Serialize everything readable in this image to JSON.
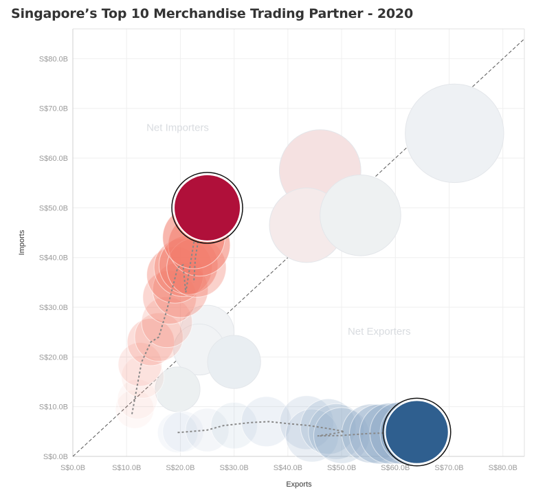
{
  "chart_data": {
    "type": "scatter",
    "title": "Singapore’s Top 10 Merchandise Trading Partner - 2020",
    "xlabel": "Exports",
    "ylabel": "Imports",
    "xlim": [
      0,
      84
    ],
    "ylim": [
      0,
      86
    ],
    "x_ticks": [
      0,
      10,
      20,
      30,
      40,
      50,
      60,
      70,
      80
    ],
    "y_ticks": [
      0,
      10,
      20,
      30,
      40,
      50,
      60,
      70,
      80
    ],
    "x_tick_labels": [
      "S$0.0B",
      "S$10.0B",
      "S$20.0B",
      "S$30.0B",
      "S$40.0B",
      "S$50.0B",
      "S$60.0B",
      "S$70.0B",
      "S$80.0B"
    ],
    "y_tick_labels": [
      "S$0.0B",
      "S$10.0B",
      "S$20.0B",
      "S$30.0B",
      "S$40.0B",
      "S$50.0B",
      "S$60.0B",
      "S$70.0B",
      "S$80.0B"
    ],
    "grid": true,
    "reference_line": "diagonal y = x (dashed)",
    "annotations": [
      {
        "text": "Net Importers",
        "x": 19.5,
        "y": 65.5
      },
      {
        "text": "Net Exporters",
        "x": 57,
        "y": 24.5
      }
    ],
    "series": [
      {
        "color_scale": "red",
        "trail": [
          [
            11.0,
            8.5
          ],
          [
            12.8,
            19.0
          ],
          [
            14.5,
            23.0
          ],
          [
            16.0,
            24.0
          ],
          [
            17.5,
            29.5
          ],
          [
            19.5,
            38.0
          ],
          [
            20.5,
            38.5
          ],
          [
            21.0,
            33.0
          ],
          [
            22.5,
            43.0
          ],
          [
            23.5,
            44.5
          ],
          [
            22.8,
            40.0
          ],
          [
            22.5,
            35.0
          ]
        ],
        "points": [
          {
            "x": 11.5,
            "y": 9.5,
            "opacity": 0.05
          },
          {
            "x": 12.0,
            "y": 11.5,
            "opacity": 0.05
          },
          {
            "x": 13.0,
            "y": 16.0,
            "opacity": 0.08
          },
          {
            "x": 12.5,
            "y": 18.5,
            "opacity": 0.15
          },
          {
            "x": 14.5,
            "y": 23.0,
            "opacity": 0.25
          },
          {
            "x": 16.0,
            "y": 24.0,
            "opacity": 0.2
          },
          {
            "x": 17.5,
            "y": 27.0,
            "opacity": 0.2
          },
          {
            "x": 18.0,
            "y": 32.0,
            "opacity": 0.3
          },
          {
            "x": 20.0,
            "y": 33.5,
            "opacity": 0.35
          },
          {
            "x": 19.0,
            "y": 36.5,
            "opacity": 0.4
          },
          {
            "x": 20.5,
            "y": 38.0,
            "opacity": 0.4
          },
          {
            "x": 21.5,
            "y": 38.5,
            "opacity": 0.45
          },
          {
            "x": 23.0,
            "y": 38.0,
            "opacity": 0.35
          },
          {
            "x": 23.5,
            "y": 42.5,
            "opacity": 0.55
          },
          {
            "x": 22.5,
            "y": 44.0,
            "opacity": 0.55
          },
          {
            "x": 25.0,
            "y": 50.0,
            "opacity": 1.0,
            "highlight": true
          }
        ]
      },
      {
        "color_scale": "blue",
        "trail": [
          [
            19.5,
            4.8
          ],
          [
            22.0,
            5.0
          ],
          [
            25.0,
            5.3
          ],
          [
            28.0,
            6.2
          ],
          [
            33.0,
            6.8
          ],
          [
            36.5,
            7.0
          ],
          [
            40.0,
            6.6
          ],
          [
            44.0,
            6.2
          ],
          [
            48.0,
            5.5
          ],
          [
            50.5,
            5.0
          ],
          [
            48.0,
            4.5
          ],
          [
            45.5,
            4.1
          ],
          [
            50.0,
            4.2
          ],
          [
            55.0,
            4.6
          ],
          [
            58.0,
            4.7
          ],
          [
            62.0,
            4.7
          ]
        ],
        "points": [
          {
            "x": 19.5,
            "y": 4.8,
            "opacity": 0.08
          },
          {
            "x": 20.5,
            "y": 5.0,
            "opacity": 0.08
          },
          {
            "x": 25.0,
            "y": 5.3,
            "opacity": 0.1
          },
          {
            "x": 30.0,
            "y": 6.2,
            "opacity": 0.12
          },
          {
            "x": 36.0,
            "y": 7.0,
            "opacity": 0.15
          },
          {
            "x": 43.5,
            "y": 6.8,
            "opacity": 0.2
          },
          {
            "x": 44.5,
            "y": 4.2,
            "opacity": 0.2
          },
          {
            "x": 47.5,
            "y": 6.0,
            "opacity": 0.25
          },
          {
            "x": 49.0,
            "y": 5.0,
            "opacity": 0.25
          },
          {
            "x": 50.0,
            "y": 4.2,
            "opacity": 0.25
          },
          {
            "x": 55.5,
            "y": 4.6,
            "opacity": 0.35
          },
          {
            "x": 57.0,
            "y": 4.5,
            "opacity": 0.4
          },
          {
            "x": 59.0,
            "y": 4.6,
            "opacity": 0.45
          },
          {
            "x": 61.0,
            "y": 4.7,
            "opacity": 0.5
          },
          {
            "x": 63.0,
            "y": 4.7,
            "opacity": 0.45
          },
          {
            "x": 64.0,
            "y": 4.9,
            "opacity": 1.0,
            "highlight": true
          }
        ]
      },
      {
        "color_scale": "faint",
        "points": [
          {
            "x": 71.0,
            "y": 65.0,
            "fill": "#eef1f4"
          },
          {
            "x": 46.0,
            "y": 57.5,
            "fill": "#f5e1e1"
          },
          {
            "x": 43.5,
            "y": 46.5,
            "fill": "#f5eaea"
          },
          {
            "x": 53.5,
            "y": 48.5,
            "fill": "#eef1f2"
          },
          {
            "x": 25.0,
            "y": 25.0,
            "fill": "#f1f3f5"
          },
          {
            "x": 23.5,
            "y": 21.5,
            "fill": "#f1f3f5"
          },
          {
            "x": 30.0,
            "y": 19.0,
            "fill": "#e9eef2"
          },
          {
            "x": 19.5,
            "y": 13.5,
            "fill": "#ecf0f1"
          }
        ]
      }
    ]
  }
}
